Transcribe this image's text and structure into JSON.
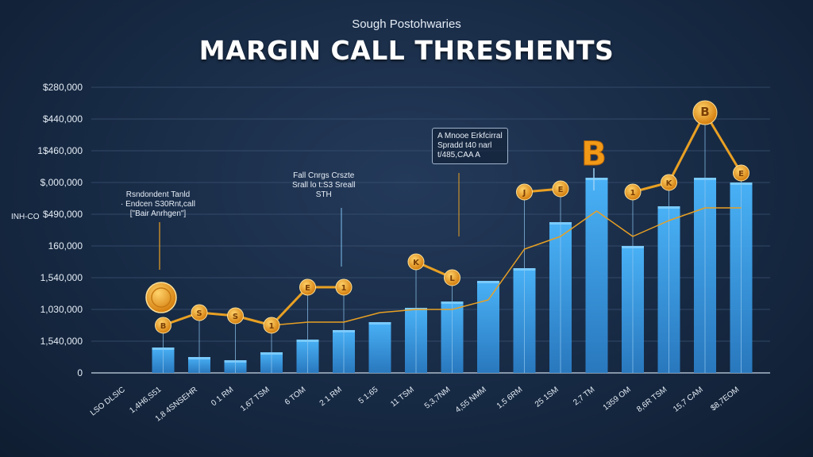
{
  "header": {
    "subtitle": "Sough Postohwaries",
    "title": "MARGIN CALL THRESHENTS"
  },
  "side_label": "INH-CO",
  "colors": {
    "background": "#172a44",
    "bar": "#3fa9f0",
    "bar_dark": "#2a7cc4",
    "line": "#e8a023",
    "coin": "#f0a020",
    "grid": "#3b5373",
    "text": "#e6edf6"
  },
  "annotations": [
    {
      "id": "left",
      "text": "Rsndondent Tanld\n· Endcen S30Rnt,call\n[\"Bair Anrhgen\"]"
    },
    {
      "id": "mid",
      "text": "Fall Cnrgs Crszte\nSrall lo t:S3 Sreall\nSTH"
    },
    {
      "id": "box",
      "text": "A Mnooe Erkfcirral\nSpradd t40 narl\nt/485,CAA A"
    }
  ],
  "chart_data": {
    "type": "bar",
    "title": "MARGIN CALL THRESHENTS",
    "subtitle": "Sough Postohwaries",
    "ylabel": "INH-CO",
    "y_tick_labels": [
      "0",
      "1,540,000",
      "1,030,000",
      "1,540,000",
      "160,000",
      "$490,000",
      "$,000,000",
      "1$460,000",
      "$440,000",
      "$280,000"
    ],
    "categories": [
      "LSO DLSIC",
      "1,4H6,S51",
      "1,8 4SNSEHR",
      "0 1 RM",
      "1,67 TSM",
      "6 TOM",
      "2 1 RM",
      "5 1:65",
      "11 TSM",
      "5,3,7NM",
      "4,55 NMM",
      "1,5 6RM",
      "25 1SM",
      "2,7 TM",
      "1359 OM",
      "8,6R TSM",
      "15,7 CAM",
      "$8,7EOM"
    ],
    "values": [
      0,
      0.8,
      0.5,
      0.4,
      0.65,
      1.05,
      1.35,
      1.6,
      2.05,
      2.25,
      2.9,
      3.3,
      4.75,
      6.15,
      4.0,
      5.25,
      6.15,
      6.0
    ],
    "ylim": [
      0,
      9
    ],
    "series": [
      {
        "values": [
          null,
          1.5,
          1.9,
          1.8,
          1.5,
          2.7,
          2.7,
          null,
          3.5,
          3.0,
          null,
          5.7,
          5.8,
          null,
          5.7,
          6.0,
          8.2,
          6.3
        ]
      },
      {
        "values": [
          null,
          null,
          null,
          null,
          1.5,
          1.6,
          1.6,
          1.9,
          2.0,
          2.0,
          2.3,
          3.9,
          4.3,
          5.1,
          4.3,
          4.8,
          5.2,
          5.2
        ]
      }
    ],
    "coins": [
      {
        "index": 1,
        "label": "B"
      },
      {
        "index": 2,
        "label": "S"
      },
      {
        "index": 3,
        "label": "S"
      },
      {
        "index": 4,
        "label": "1"
      },
      {
        "index": 5,
        "label": "E"
      },
      {
        "index": 6,
        "label": "1"
      },
      {
        "index": 8,
        "label": "K"
      },
      {
        "index": 9,
        "label": "L"
      },
      {
        "index": 11,
        "label": "J"
      },
      {
        "index": 12,
        "label": "E"
      },
      {
        "index": 14,
        "label": "1"
      },
      {
        "index": 15,
        "label": "K"
      },
      {
        "index": 16,
        "label": "B"
      },
      {
        "index": 17,
        "label": "E"
      }
    ],
    "grid": true
  }
}
